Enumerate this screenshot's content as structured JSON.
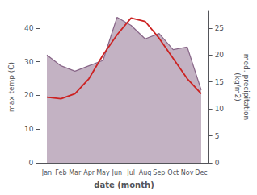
{
  "chart_data": {
    "type": "line",
    "categories": [
      "Jan",
      "Feb",
      "Mar",
      "Apr",
      "May",
      "Jun",
      "Jul",
      "Aug",
      "Sep",
      "Oct",
      "Nov",
      "Dec"
    ],
    "xlabel": "date (month)",
    "ylabel": "max temp (C)",
    "y2label": "med. precipitation\n(kg/m2)",
    "series": [
      {
        "type": "line",
        "color": "#cc2222",
        "values": [
          19.5,
          19.0,
          20.5,
          25.0,
          32.0,
          38.0,
          43.0,
          42.0,
          37.0,
          31.0,
          25.0,
          20.5
        ]
      },
      {
        "type": "area",
        "axis": "y2",
        "color": "#886688",
        "values": [
          20.0,
          18.0,
          17.0,
          18.0,
          19.0,
          27.0,
          25.5,
          23.0,
          24.0,
          21.0,
          21.5,
          13.5
        ]
      }
    ],
    "ylim": [
      0,
      45
    ],
    "yticks": [
      0,
      10,
      20,
      30,
      40
    ],
    "y2lim": [
      0,
      28.125
    ],
    "y2ticks": [
      0,
      5,
      10,
      15,
      20,
      25
    ],
    "grid": false
  }
}
